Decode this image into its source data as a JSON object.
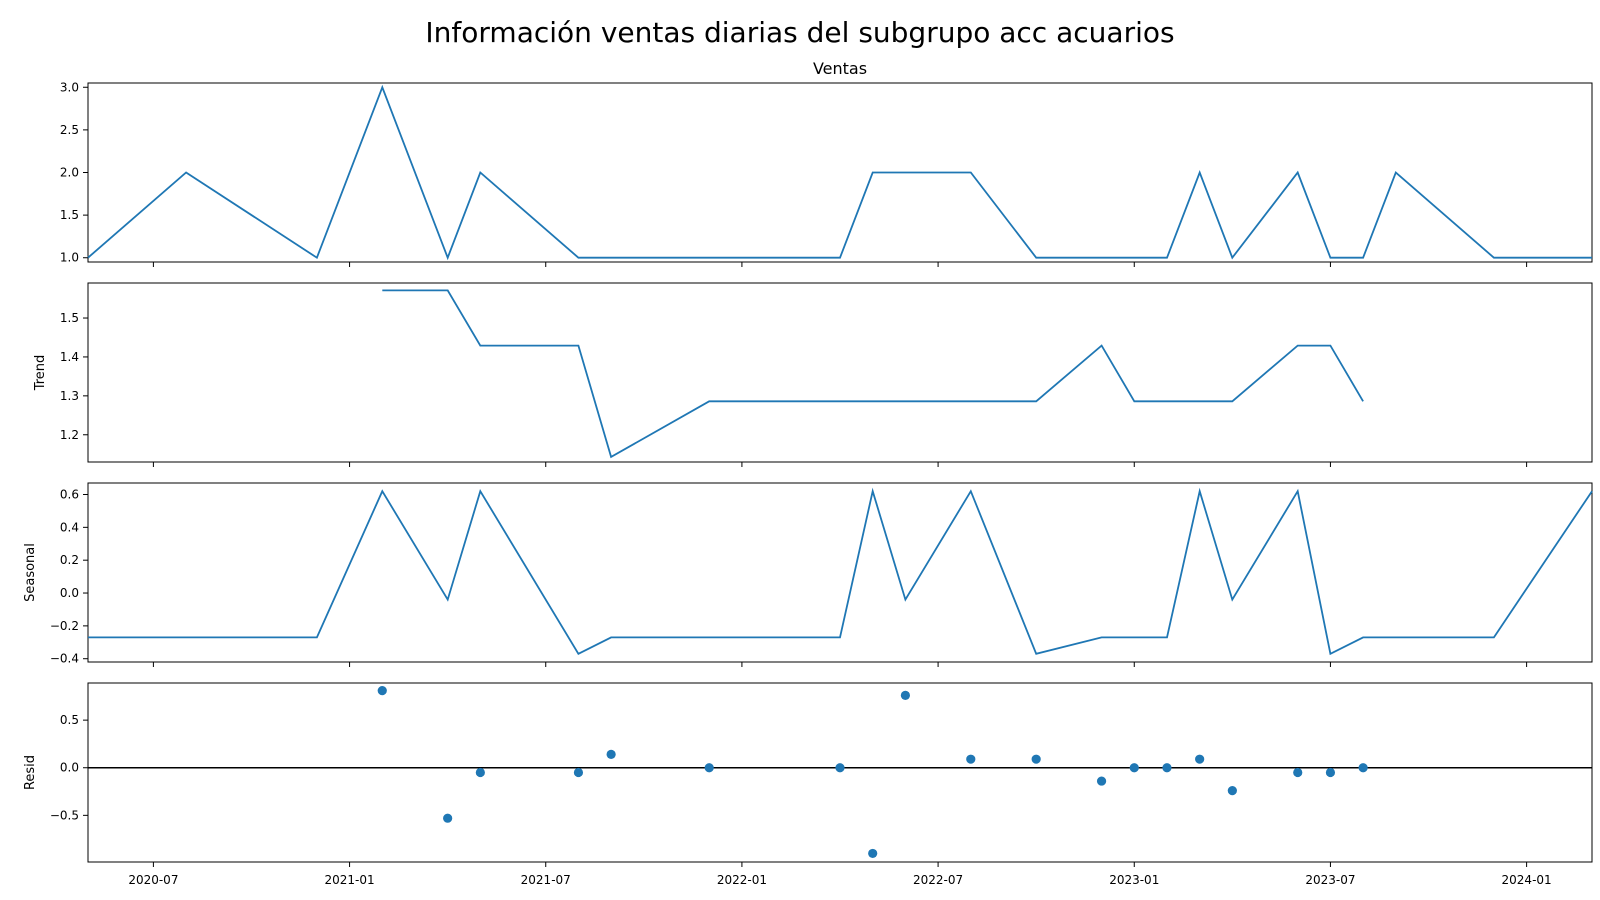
{
  "chart_data": {
    "title": "Información ventas diarias del subgrupo acc acuarios",
    "type": "line",
    "x_axis": {
      "type": "date",
      "range": [
        "2020-05",
        "2024-03"
      ],
      "tick_labels": [
        "2020-07",
        "2021-01",
        "2021-07",
        "2022-01",
        "2022-07",
        "2023-01",
        "2023-07",
        "2024-01"
      ],
      "shared": true
    },
    "x": [
      "2020-05",
      "2020-08",
      "2020-12",
      "2021-02",
      "2021-04",
      "2021-05",
      "2021-08",
      "2021-09",
      "2021-12",
      "2022-04",
      "2022-05",
      "2022-06",
      "2022-08",
      "2022-10",
      "2022-12",
      "2023-01",
      "2023-02",
      "2023-03",
      "2023-04",
      "2023-06",
      "2023-07",
      "2023-08",
      "2023-09",
      "2023-12",
      "2024-03"
    ],
    "panels": [
      {
        "id": "ventas",
        "type": "line",
        "title": "Ventas",
        "ylabel": "",
        "ylim": [
          0.95,
          3.05
        ],
        "yticks": [
          "1.0",
          "1.5",
          "2.0",
          "2.5",
          "3.0"
        ],
        "values": [
          1,
          2,
          1,
          3,
          1,
          2,
          1,
          1,
          1,
          1,
          2,
          2,
          2,
          1,
          1,
          1,
          1,
          2,
          1,
          2,
          1,
          1,
          2,
          1,
          1
        ]
      },
      {
        "id": "trend",
        "type": "line",
        "title": "",
        "ylabel": "Trend",
        "ylim": [
          1.13,
          1.59
        ],
        "yticks": [
          "1.2",
          "1.3",
          "1.4",
          "1.5"
        ],
        "values": [
          null,
          null,
          null,
          1.571,
          1.571,
          1.429,
          1.429,
          1.143,
          1.286,
          1.286,
          1.286,
          1.286,
          1.286,
          1.286,
          1.429,
          1.286,
          1.286,
          1.286,
          1.286,
          1.429,
          1.429,
          1.286,
          null,
          null,
          null
        ]
      },
      {
        "id": "seasonal",
        "type": "line",
        "title": "",
        "ylabel": "Seasonal",
        "ylim": [
          -0.42,
          0.67
        ],
        "yticks": [
          "−0.4",
          "−0.2",
          "0.0",
          "0.2",
          "0.4",
          "0.6"
        ],
        "values": [
          -0.27,
          -0.27,
          -0.27,
          0.62,
          -0.04,
          0.62,
          -0.37,
          -0.27,
          -0.27,
          -0.27,
          0.62,
          -0.04,
          0.62,
          -0.37,
          -0.27,
          -0.27,
          -0.27,
          0.62,
          -0.04,
          0.62,
          -0.37,
          -0.27,
          -0.27,
          -0.27,
          0.62
        ]
      },
      {
        "id": "resid",
        "type": "scatter",
        "title": "",
        "ylabel": "Resid",
        "ylim": [
          -0.99,
          0.89
        ],
        "yticks": [
          "−0.5",
          "0.0",
          "0.5"
        ],
        "zero_line": true,
        "values": [
          null,
          null,
          null,
          0.81,
          -0.53,
          -0.05,
          -0.05,
          0.14,
          0.0,
          0.0,
          -0.9,
          0.76,
          0.09,
          0.09,
          -0.14,
          0.0,
          0.0,
          0.09,
          -0.24,
          -0.05,
          -0.05,
          0.0,
          null,
          null,
          null
        ]
      }
    ],
    "color": "#1f77b4",
    "grid": false,
    "legend": "none"
  }
}
